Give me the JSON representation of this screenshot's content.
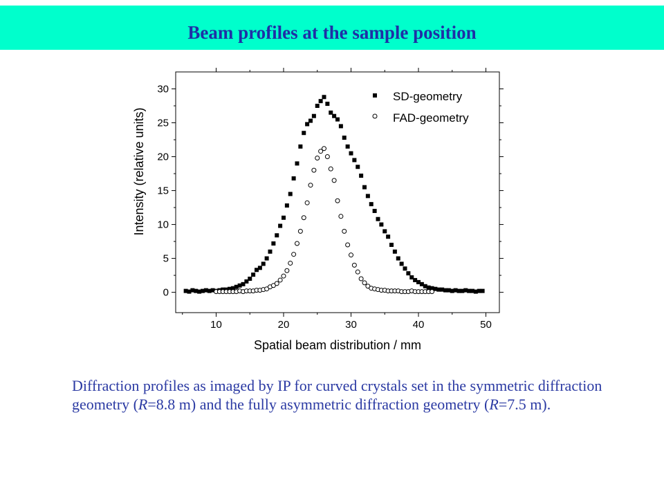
{
  "page": {
    "title": "Beam profiles at the sample position",
    "title_color": "#1f2fa6",
    "title_bar_color": "#00ffcc",
    "caption_color": "#2b3aa3"
  },
  "caption": {
    "part1": "Diffraction profiles as imaged by IP for curved crystals set in the symmetric diffraction geometry (",
    "r1_symbol": "R",
    "part2": "=8.8 m) and the fully asymmetric diffraction geometry (",
    "r2_symbol": "R",
    "part3": "=7.5 m)."
  },
  "chart_data": {
    "type": "scatter",
    "xlabel": "Spatial beam distribution / mm",
    "ylabel": "Intensity (relative units)",
    "xlim": [
      4,
      52
    ],
    "ylim": [
      -3,
      32.5
    ],
    "xticks": [
      10,
      20,
      30,
      40,
      50
    ],
    "yticks": [
      0,
      5,
      10,
      15,
      20,
      25,
      30
    ],
    "legend_position": "top-right",
    "grid": false,
    "series": [
      {
        "name": "SD-geometry",
        "marker": "filled-square",
        "color": "#000000",
        "x": [
          5.5,
          6.0,
          6.5,
          7.0,
          7.5,
          8.0,
          8.5,
          9.0,
          9.5,
          10.0,
          10.5,
          11.0,
          11.5,
          12.0,
          12.5,
          13.0,
          13.5,
          14.0,
          14.5,
          15.0,
          15.5,
          16.0,
          16.5,
          17.0,
          17.5,
          18.0,
          18.5,
          19.0,
          19.5,
          20.0,
          20.5,
          21.0,
          21.5,
          22.0,
          22.5,
          23.0,
          23.5,
          24.0,
          24.5,
          25.0,
          25.5,
          26.0,
          26.5,
          27.0,
          27.5,
          28.0,
          28.5,
          29.0,
          29.5,
          30.0,
          30.5,
          31.0,
          31.5,
          32.0,
          32.5,
          33.0,
          33.5,
          34.0,
          34.5,
          35.0,
          35.5,
          36.0,
          36.5,
          37.0,
          37.5,
          38.0,
          38.5,
          39.0,
          39.5,
          40.0,
          40.5,
          41.0,
          41.5,
          42.0,
          42.5,
          43.0,
          43.5,
          44.0,
          44.5,
          45.0,
          45.5,
          46.0,
          46.5,
          47.0,
          47.5,
          48.0,
          48.5,
          49.0,
          49.5
        ],
        "y": [
          0.2,
          0.1,
          0.3,
          0.2,
          0.1,
          0.2,
          0.3,
          0.2,
          0.3,
          0.2,
          0.3,
          0.4,
          0.4,
          0.5,
          0.6,
          0.8,
          1.0,
          1.2,
          1.6,
          2.0,
          2.6,
          3.3,
          3.6,
          4.2,
          5.0,
          6.0,
          7.2,
          8.4,
          9.8,
          11.0,
          12.8,
          14.5,
          16.8,
          19.0,
          21.5,
          23.5,
          24.8,
          25.3,
          26.0,
          27.5,
          28.2,
          28.8,
          27.8,
          26.5,
          26.0,
          25.5,
          24.5,
          22.8,
          21.5,
          20.5,
          19.5,
          18.5,
          17.2,
          15.5,
          14.2,
          13.0,
          12.0,
          10.8,
          10.0,
          9.0,
          8.2,
          7.0,
          6.0,
          5.0,
          4.2,
          3.5,
          2.8,
          2.2,
          1.8,
          1.5,
          1.2,
          0.9,
          0.7,
          0.6,
          0.5,
          0.4,
          0.4,
          0.3,
          0.3,
          0.2,
          0.3,
          0.2,
          0.2,
          0.3,
          0.2,
          0.2,
          0.1,
          0.2,
          0.2
        ]
      },
      {
        "name": "FAD-geometry",
        "marker": "open-circle",
        "color": "#000000",
        "x": [
          10.0,
          10.5,
          11.0,
          11.5,
          12.0,
          12.5,
          13.0,
          13.5,
          14.0,
          14.5,
          15.0,
          15.5,
          16.0,
          16.5,
          17.0,
          17.5,
          18.0,
          18.5,
          19.0,
          19.5,
          20.0,
          20.5,
          21.0,
          21.5,
          22.0,
          22.5,
          23.0,
          23.5,
          24.0,
          24.5,
          25.0,
          25.5,
          26.0,
          26.5,
          27.0,
          27.5,
          28.0,
          28.5,
          29.0,
          29.5,
          30.0,
          30.5,
          31.0,
          31.5,
          32.0,
          32.5,
          33.0,
          33.5,
          34.0,
          34.5,
          35.0,
          35.5,
          36.0,
          36.5,
          37.0,
          37.5,
          38.0,
          38.5,
          39.0,
          39.5,
          40.0,
          40.5,
          41.0,
          41.5,
          42.0
        ],
        "y": [
          0.1,
          0.1,
          0.1,
          0.1,
          0.1,
          0.1,
          0.1,
          0.2,
          0.1,
          0.2,
          0.2,
          0.2,
          0.3,
          0.3,
          0.4,
          0.5,
          0.8,
          1.0,
          1.3,
          1.8,
          2.4,
          3.2,
          4.3,
          5.6,
          7.2,
          9.0,
          11.0,
          13.2,
          15.8,
          18.0,
          19.8,
          20.8,
          21.2,
          20.0,
          18.2,
          16.5,
          13.5,
          11.2,
          9.0,
          7.0,
          5.5,
          4.0,
          3.0,
          2.0,
          1.4,
          0.9,
          0.6,
          0.5,
          0.4,
          0.3,
          0.3,
          0.2,
          0.2,
          0.2,
          0.2,
          0.1,
          0.1,
          0.1,
          0.2,
          0.1,
          0.1,
          0.1,
          0.1,
          0.1,
          0.1
        ]
      }
    ]
  }
}
